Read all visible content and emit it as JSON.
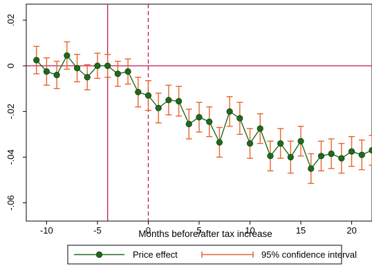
{
  "chart_data": {
    "type": "line",
    "xlabel": "Months before/after tax increase",
    "ylabel": "",
    "xlim": [
      -12,
      22
    ],
    "ylim": [
      -0.068,
      0.027
    ],
    "xticks": [
      -10,
      -5,
      0,
      5,
      10,
      15,
      20
    ],
    "xtick_labels": [
      "-10",
      "-5",
      "0",
      "5",
      "10",
      "15",
      "20"
    ],
    "yticks": [
      0.02,
      0,
      -0.02,
      -0.04,
      -0.06
    ],
    "ytick_labels": [
      ".02",
      "0",
      "-.02",
      "-.04",
      "-.06"
    ],
    "grid": false,
    "legend_position": "bottom",
    "reference_lines": {
      "horizontal_y": 0,
      "vertical_solid_x": -4,
      "vertical_dashed_x": 0
    },
    "x": [
      -11,
      -10,
      -9,
      -8,
      -7,
      -6,
      -5,
      -4,
      -3,
      -2,
      -1,
      0,
      1,
      2,
      3,
      4,
      5,
      6,
      7,
      8,
      9,
      10,
      11,
      12,
      13,
      14,
      15,
      16,
      17,
      18,
      19,
      20,
      21,
      22
    ],
    "series": [
      {
        "name": "Price effect",
        "color": "#1e6b1e",
        "values": [
          0.0025,
          -0.0025,
          -0.004,
          0.0045,
          -0.001,
          -0.005,
          0.0,
          0.0,
          -0.0035,
          -0.0025,
          -0.0115,
          -0.013,
          -0.0185,
          -0.015,
          -0.0155,
          -0.0255,
          -0.0225,
          -0.0245,
          -0.0335,
          -0.02,
          -0.023,
          -0.034,
          -0.0275,
          -0.0395,
          -0.034,
          -0.04,
          -0.033,
          -0.045,
          -0.0395,
          -0.0385,
          -0.0405,
          -0.0375,
          -0.039,
          -0.037
        ]
      },
      {
        "name": "95% confidence interval",
        "color": "#e8642a",
        "lower": [
          -0.0035,
          -0.0085,
          -0.01,
          -0.0015,
          -0.007,
          -0.0105,
          -0.0055,
          -0.005,
          -0.009,
          -0.008,
          -0.018,
          -0.0195,
          -0.025,
          -0.0215,
          -0.022,
          -0.032,
          -0.029,
          -0.031,
          -0.04,
          -0.0265,
          -0.03,
          -0.0405,
          -0.034,
          -0.046,
          -0.0405,
          -0.047,
          -0.0395,
          -0.0515,
          -0.046,
          -0.045,
          -0.047,
          -0.044,
          -0.0455,
          -0.0435
        ],
        "upper": [
          0.0085,
          0.0035,
          0.002,
          0.0105,
          0.005,
          0.0005,
          0.0055,
          0.005,
          0.002,
          0.003,
          -0.005,
          -0.0065,
          -0.012,
          -0.0085,
          -0.009,
          -0.019,
          -0.016,
          -0.018,
          -0.027,
          -0.0135,
          -0.016,
          -0.0275,
          -0.021,
          -0.033,
          -0.0275,
          -0.033,
          -0.0265,
          -0.0385,
          -0.033,
          -0.032,
          -0.034,
          -0.031,
          -0.0325,
          -0.0305
        ]
      }
    ],
    "colors": {
      "reference_line": "#c0174f",
      "axis": "#000000"
    }
  }
}
